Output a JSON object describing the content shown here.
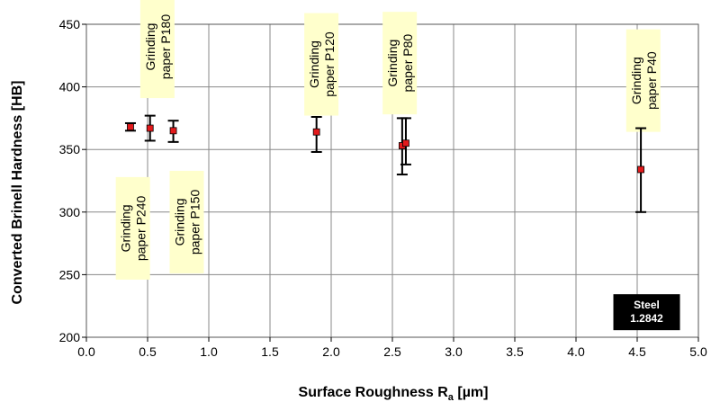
{
  "chart_data": {
    "type": "scatter",
    "xlabel": "Surface Roughness R",
    "xlabel_sub": "a",
    "xlabel_unit": " [µm]",
    "ylabel": "Converted Brinell Hardness [HB]",
    "xlim": [
      0.0,
      5.0
    ],
    "ylim": [
      200,
      450
    ],
    "x_ticks": [
      "0.0",
      "0.5",
      "1.0",
      "1.5",
      "2.0",
      "2.5",
      "3.0",
      "3.5",
      "4.0",
      "4.5",
      "5.0"
    ],
    "y_ticks": [
      "200",
      "250",
      "300",
      "350",
      "400",
      "450"
    ],
    "grid": true,
    "marker_color": "#e31a1c",
    "points": [
      {
        "x": 0.36,
        "y": 368,
        "y_low": 365,
        "y_high": 371
      },
      {
        "x": 0.52,
        "y": 367,
        "y_low": 357,
        "y_high": 377
      },
      {
        "x": 0.71,
        "y": 365,
        "y_low": 356,
        "y_high": 373
      },
      {
        "x": 1.88,
        "y": 364,
        "y_low": 348,
        "y_high": 376
      },
      {
        "x": 2.58,
        "y": 353,
        "y_low": 330,
        "y_high": 375
      },
      {
        "x": 2.61,
        "y": 355,
        "y_low": 338,
        "y_high": 375
      },
      {
        "x": 4.53,
        "y": 334,
        "y_low": 300,
        "y_high": 367
      }
    ],
    "annotations": [
      {
        "lines": [
          "Grinding",
          "paper P240"
        ],
        "x": 0.38,
        "y": 287
      },
      {
        "lines": [
          "Grinding",
          "paper P180"
        ],
        "x": 0.58,
        "y": 432
      },
      {
        "lines": [
          "Grinding",
          "paper P150"
        ],
        "x": 0.82,
        "y": 292
      },
      {
        "lines": [
          "Grinding",
          "paper P120"
        ],
        "x": 1.92,
        "y": 418
      },
      {
        "lines": [
          "Grinding",
          "paper P80"
        ],
        "x": 2.56,
        "y": 419
      },
      {
        "lines": [
          "Grinding",
          "paper P40"
        ],
        "x": 4.55,
        "y": 405
      }
    ],
    "badge": {
      "lines": [
        "Steel",
        "1.2842"
      ],
      "x": 4.57,
      "y": 220
    }
  }
}
